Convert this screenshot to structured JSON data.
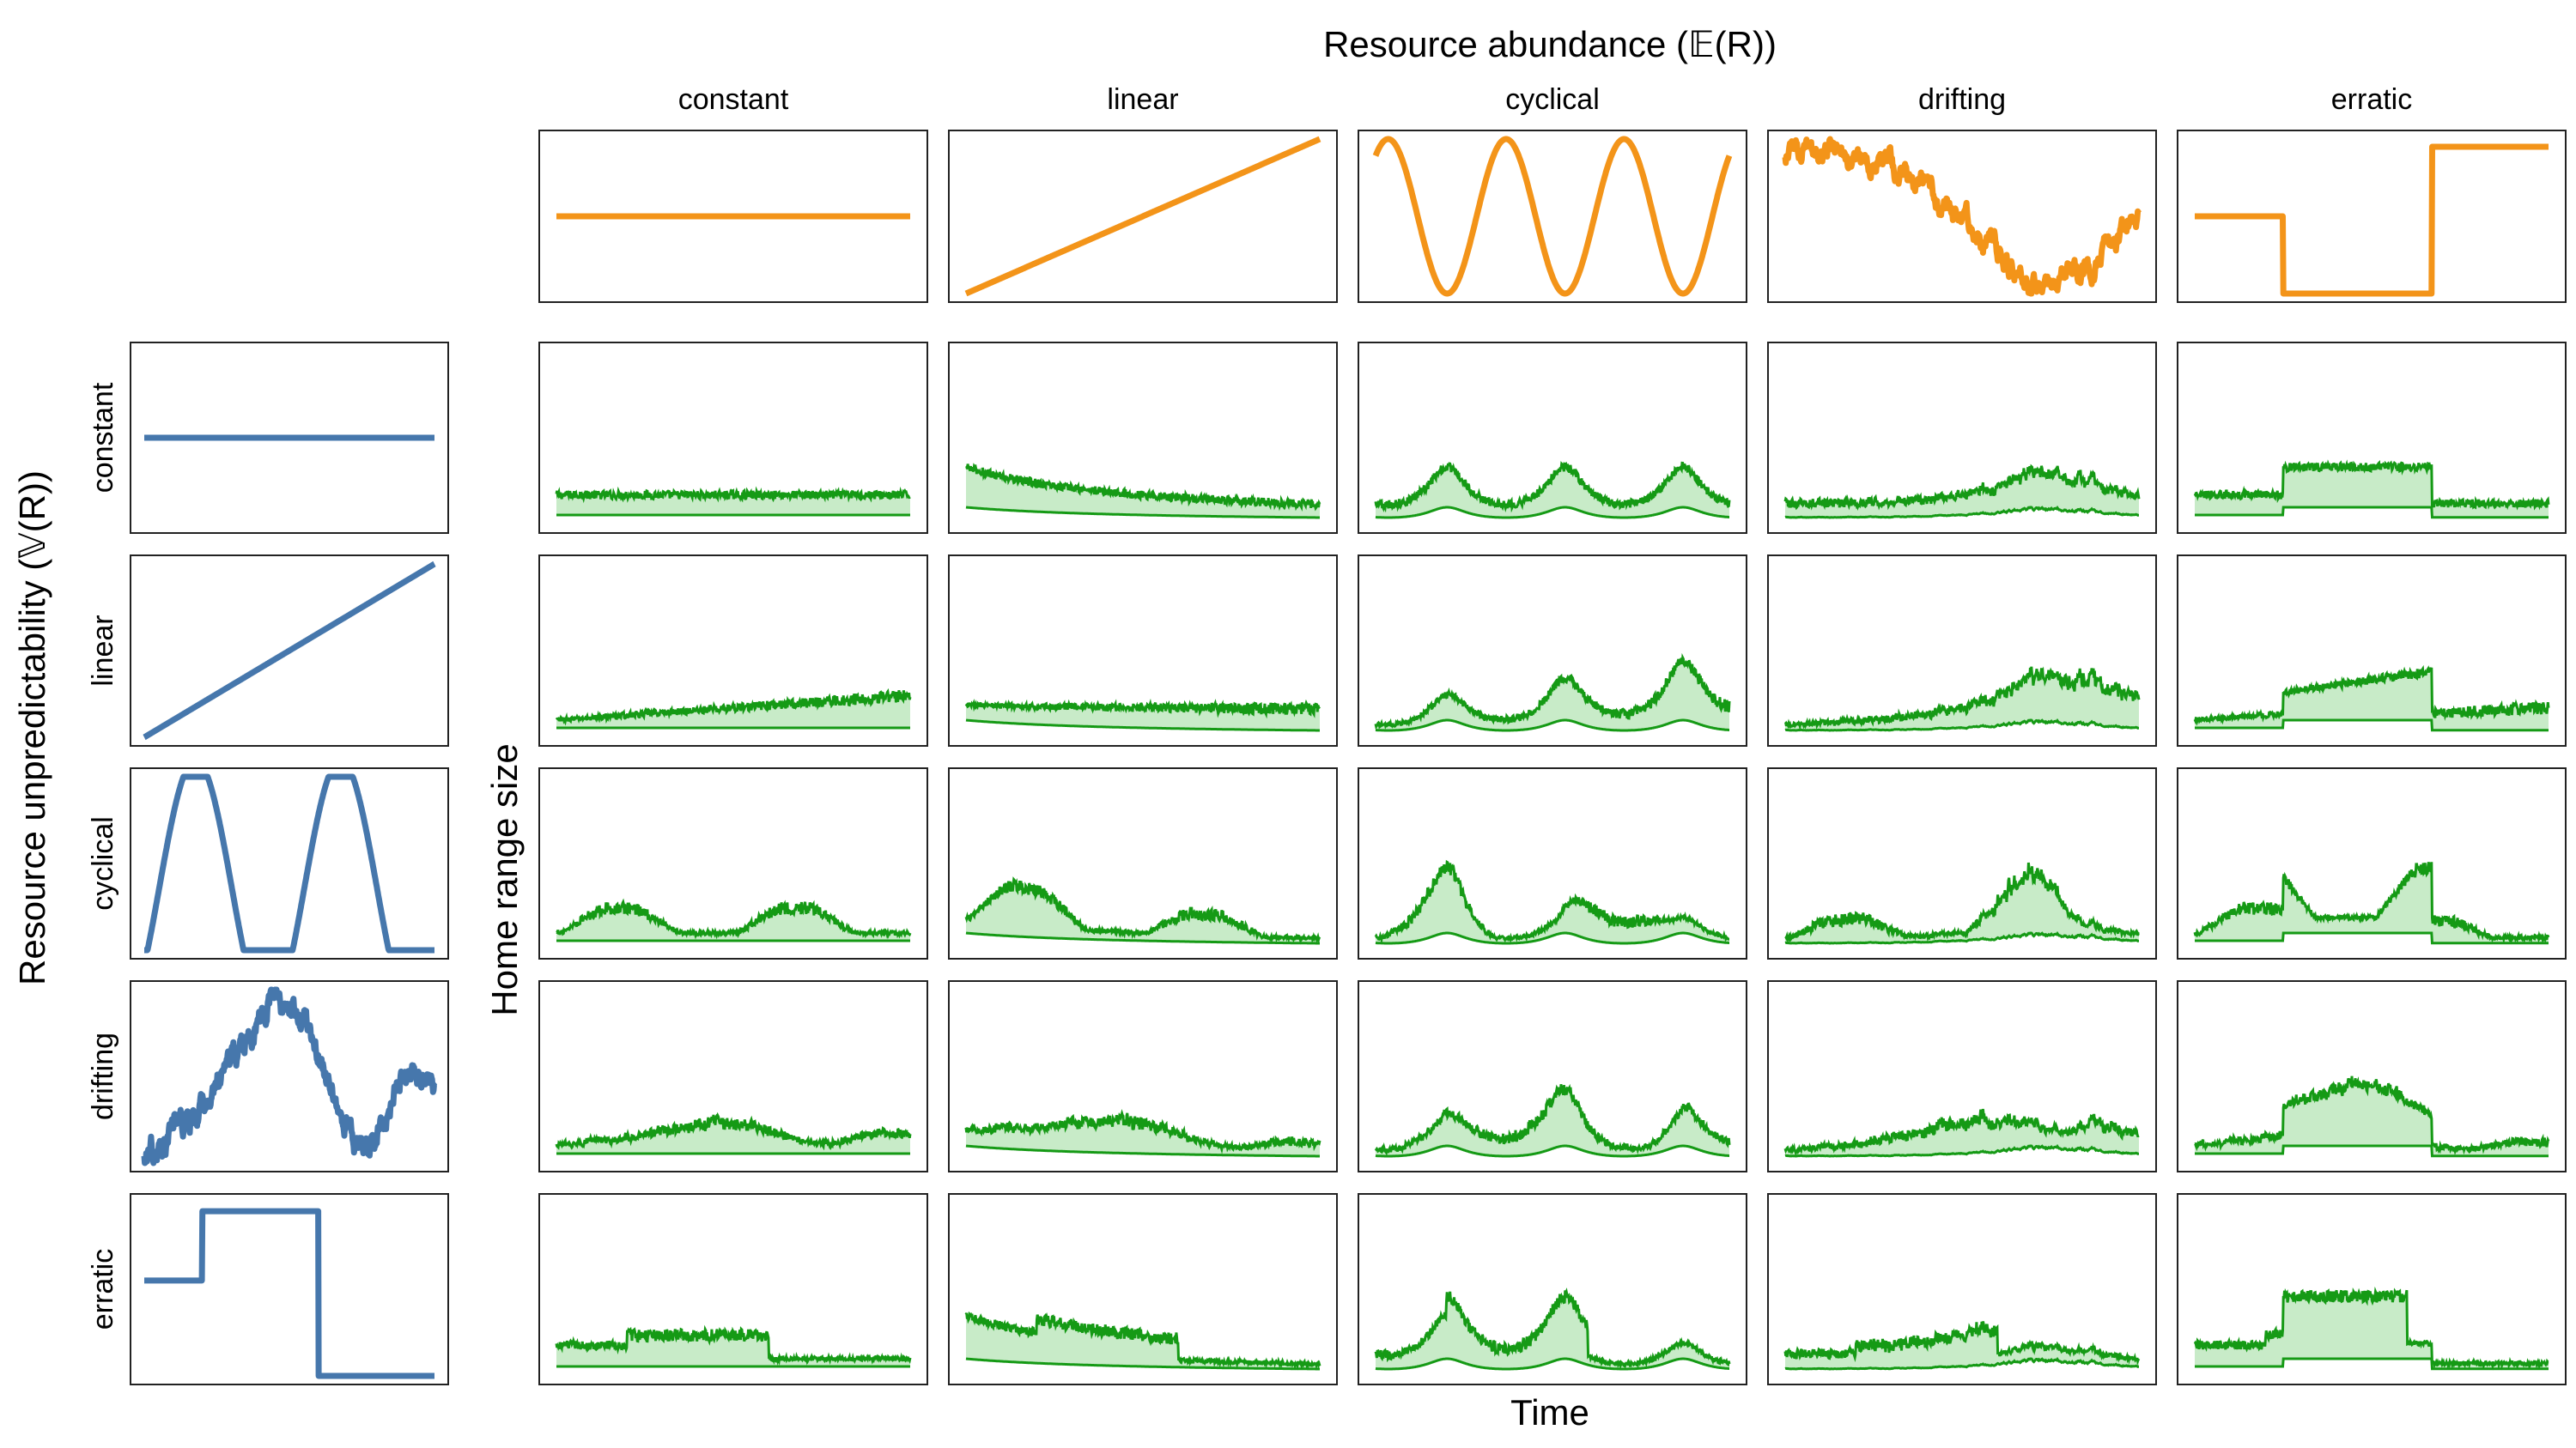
{
  "figure": {
    "top_title": "Resource abundance (𝔼(R))",
    "left_title": "Resource unpredictability (𝕍(R))",
    "y_axis_label": "Home range size",
    "x_axis_label": "Time"
  },
  "colors": {
    "abundance_line": "#f39419",
    "unpredictability_line": "#4677ac",
    "home_range_line": "#159a15",
    "home_range_fill": "#c8ebc8",
    "panel_border": "#222222"
  },
  "chart_data": {
    "type": "line",
    "x_range": [
      0,
      1
    ],
    "abundance_patterns": [
      {
        "label": "constant",
        "shape": "flat",
        "y": [
          0.5,
          0.5
        ],
        "ylim": [
          0,
          1
        ]
      },
      {
        "label": "linear",
        "shape": "ramp",
        "y": [
          0.0,
          1.0
        ],
        "ylim": [
          0,
          1
        ]
      },
      {
        "label": "cyclical",
        "shape": "sine",
        "cycles": 3,
        "ylim": [
          0,
          1
        ]
      },
      {
        "label": "drifting",
        "shape": "random-walk",
        "y": [
          0.9,
          0.95,
          0.85,
          0.65,
          0.3,
          0.05,
          0.15,
          0.5
        ],
        "ylim": [
          0,
          1
        ]
      },
      {
        "label": "erratic",
        "shape": "steps",
        "y": [
          0.5,
          0.5,
          0.0,
          0.0,
          0.95,
          0.95
        ],
        "x": [
          0.0,
          0.25,
          0.25,
          0.67,
          0.67,
          1.0
        ],
        "ylim": [
          0,
          1
        ]
      }
    ],
    "unpredictability_patterns": [
      {
        "label": "constant",
        "shape": "flat",
        "y": [
          0.5,
          0.5
        ],
        "ylim": [
          0,
          1
        ]
      },
      {
        "label": "linear",
        "shape": "ramp",
        "y": [
          0.0,
          1.0
        ],
        "ylim": [
          0,
          1
        ]
      },
      {
        "label": "cyclical",
        "shape": "sine-clipped",
        "cycles": 2,
        "ylim": [
          0,
          1
        ]
      },
      {
        "label": "drifting",
        "shape": "random-walk",
        "y": [
          0.05,
          0.2,
          0.35,
          0.65,
          0.95,
          0.85,
          0.3,
          0.05,
          0.5,
          0.45
        ],
        "ylim": [
          0,
          1
        ]
      },
      {
        "label": "erratic",
        "shape": "steps",
        "y": [
          0.55,
          0.55,
          0.95,
          0.95,
          0.0,
          0.0
        ],
        "x": [
          0.0,
          0.2,
          0.2,
          0.6,
          0.6,
          1.0
        ],
        "ylim": [
          0,
          1
        ]
      }
    ],
    "home_range_grid_ylim": [
      0,
      1
    ],
    "home_range_grid": "upper[i][j] / lower[i][j] bands, i = unpredictability row, j = abundance column, computed from the patterns above"
  }
}
